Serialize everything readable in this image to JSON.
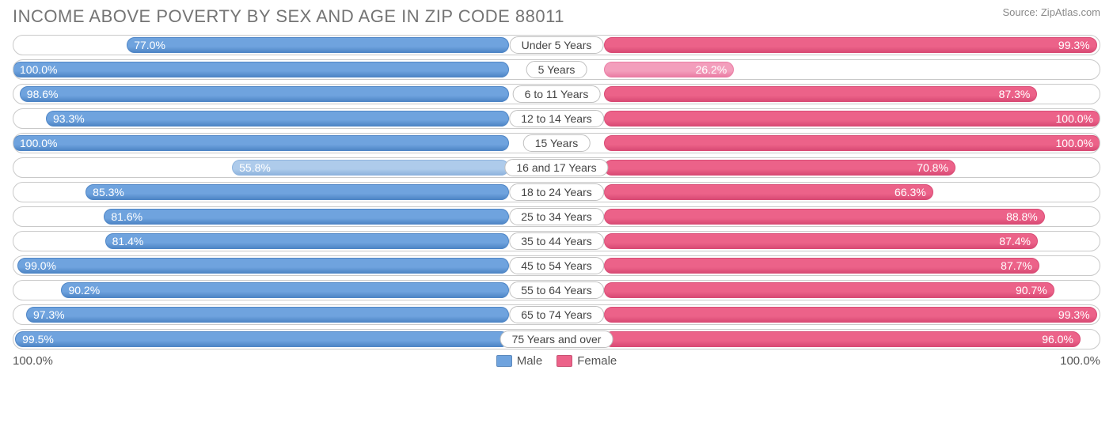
{
  "title": "INCOME ABOVE POVERTY BY SEX AND AGE IN ZIP CODE 88011",
  "source": "Source: ZipAtlas.com",
  "axis": {
    "left": "100.0%",
    "right": "100.0%"
  },
  "legend": {
    "male": "Male",
    "female": "Female"
  },
  "colors": {
    "male_base": "#6fa3de",
    "male_border": "#4f86c6",
    "female_base": "#ec6289",
    "female_border": "#d94b75",
    "male_light_base": "#aecbeb",
    "male_light_border": "#8fb4de",
    "female_light_base": "#f39ebc",
    "female_light_border": "#ea7da4",
    "row_border": "#c9c9c9",
    "text": "#555555",
    "title_color": "#747474"
  },
  "max_percent": 100.0,
  "label_fontsize": 14,
  "title_fontsize": 22,
  "rows": [
    {
      "category": "Under 5 Years",
      "male": 77.0,
      "female": 99.3,
      "male_light": false,
      "female_light": false
    },
    {
      "category": "5 Years",
      "male": 100.0,
      "female": 26.2,
      "male_light": false,
      "female_light": true
    },
    {
      "category": "6 to 11 Years",
      "male": 98.6,
      "female": 87.3,
      "male_light": false,
      "female_light": false
    },
    {
      "category": "12 to 14 Years",
      "male": 93.3,
      "female": 100.0,
      "male_light": false,
      "female_light": false
    },
    {
      "category": "15 Years",
      "male": 100.0,
      "female": 100.0,
      "male_light": false,
      "female_light": false
    },
    {
      "category": "16 and 17 Years",
      "male": 55.8,
      "female": 70.8,
      "male_light": true,
      "female_light": false
    },
    {
      "category": "18 to 24 Years",
      "male": 85.3,
      "female": 66.3,
      "male_light": false,
      "female_light": false
    },
    {
      "category": "25 to 34 Years",
      "male": 81.6,
      "female": 88.8,
      "male_light": false,
      "female_light": false
    },
    {
      "category": "35 to 44 Years",
      "male": 81.4,
      "female": 87.4,
      "male_light": false,
      "female_light": false
    },
    {
      "category": "45 to 54 Years",
      "male": 99.0,
      "female": 87.7,
      "male_light": false,
      "female_light": false
    },
    {
      "category": "55 to 64 Years",
      "male": 90.2,
      "female": 90.7,
      "male_light": false,
      "female_light": false
    },
    {
      "category": "65 to 74 Years",
      "male": 97.3,
      "female": 99.3,
      "male_light": false,
      "female_light": false
    },
    {
      "category": "75 Years and over",
      "male": 99.5,
      "female": 96.0,
      "male_light": false,
      "female_light": false
    }
  ]
}
